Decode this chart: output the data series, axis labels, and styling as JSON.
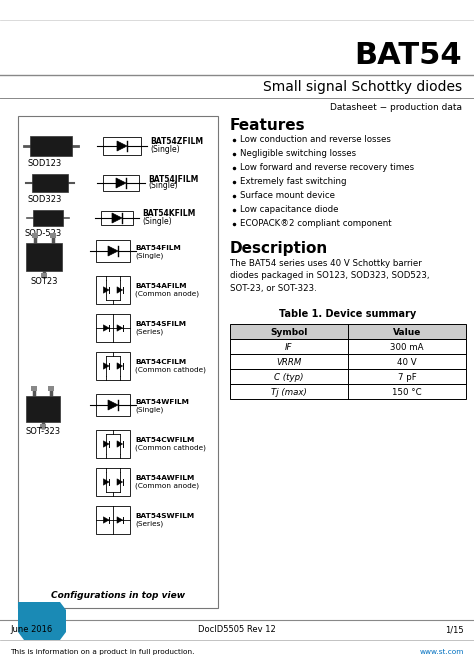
{
  "title": "BAT54",
  "subtitle": "Small signal Schottky diodes",
  "header_line1": "Datasheet − production data",
  "features_title": "Features",
  "features": [
    "Low conduction and reverse losses",
    "Negligible switching losses",
    "Low forward and reverse recovery times",
    "Extremely fast switching",
    "Surface mount device",
    "Low capacitance diode",
    "ECOPACK®2 compliant component"
  ],
  "description_title": "Description",
  "description_text": "The BAT54 series uses 40 V Schottky barrier\ndiodes packaged in SO123, SOD323, SOD523,\nSOT-23, or SOT-323.",
  "table_title": "Table 1. Device summary",
  "table_headers": [
    "Symbol",
    "Value"
  ],
  "table_symbols": [
    "IF",
    "VRRM",
    "C (typ)",
    "Tj (max)"
  ],
  "table_values": [
    "300 mA",
    "40 V",
    "7 pF",
    "150 °C"
  ],
  "configs_caption": "Configurations in top view",
  "footer_left": "June 2016",
  "footer_doc": "DocID5505 Rev 12",
  "footer_page": "1/15",
  "footer_note": "This is information on a product in full production.",
  "footer_url": "www.st.com",
  "bg_color": "#ffffff",
  "blue_color": "#0070c0",
  "st_blue": "#1a8ab5"
}
